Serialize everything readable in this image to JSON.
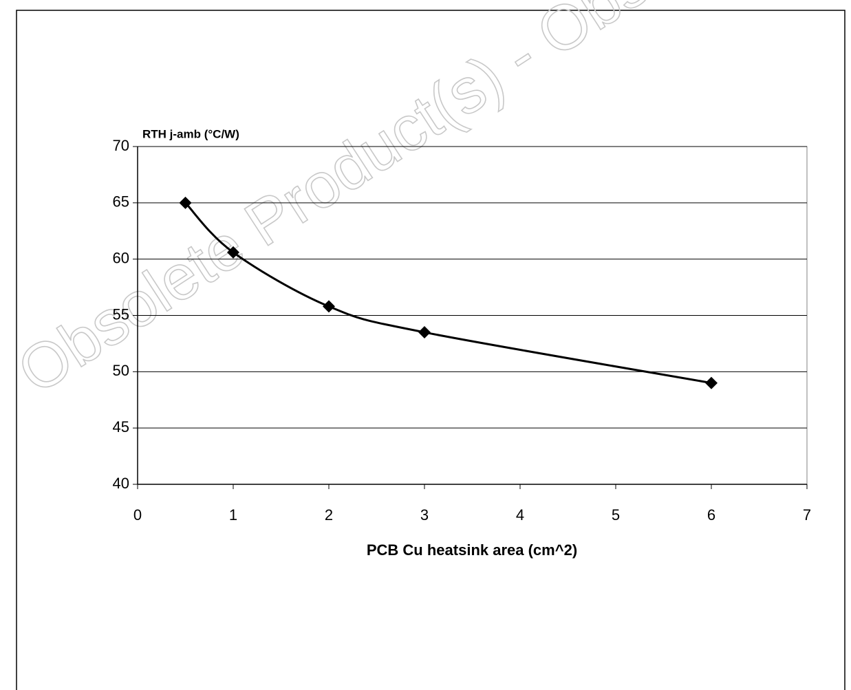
{
  "chart_data": {
    "type": "line",
    "watermark": "Obsolete Product(s) - Obsolete",
    "ylabel": "RTH j-amb (°C/W)",
    "xlabel": "PCB Cu heatsink area (cm^2)",
    "x": [
      0.5,
      1,
      2,
      3,
      6
    ],
    "series": [
      {
        "name": "RTH j-amb",
        "color": "#000000",
        "values": [
          65,
          60.6,
          55.8,
          53.5,
          49
        ]
      }
    ],
    "xlim": [
      0,
      7
    ],
    "xticks": [
      0,
      1,
      2,
      3,
      4,
      5,
      6,
      7
    ],
    "ylim": [
      40,
      70
    ],
    "yticks": [
      40,
      45,
      50,
      55,
      60,
      65,
      70
    ],
    "grid": true
  }
}
